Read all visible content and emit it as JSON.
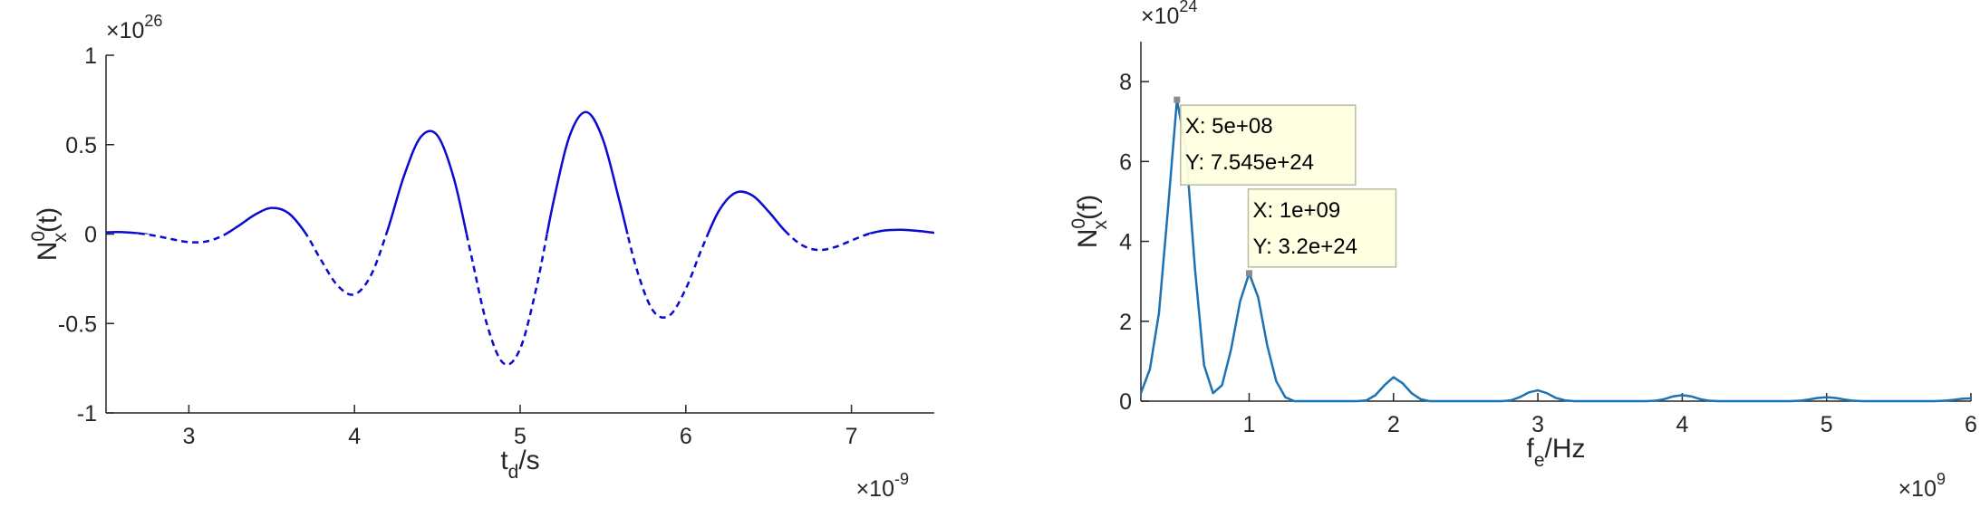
{
  "chart_data": [
    {
      "type": "line",
      "xlabel": {
        "base": "t",
        "sub": "d",
        "rest": "/s"
      },
      "ylabel": {
        "base": "N",
        "sub": "x",
        "sup": "0",
        "rest": "(t)"
      },
      "x_exponent": {
        "base": "×10",
        "sup": "-9"
      },
      "y_exponent": {
        "base": "×10",
        "sup": "26"
      },
      "x": [
        2.5,
        2.6,
        2.7,
        2.8,
        2.9,
        3.0,
        3.1,
        3.2,
        3.3,
        3.4,
        3.5,
        3.6,
        3.7,
        3.8,
        3.9,
        4.0,
        4.1,
        4.2,
        4.3,
        4.4,
        4.5,
        4.6,
        4.7,
        4.8,
        4.9,
        5.0,
        5.1,
        5.2,
        5.3,
        5.4,
        5.5,
        5.6,
        5.7,
        5.8,
        5.9,
        6.0,
        6.1,
        6.2,
        6.3,
        6.4,
        6.5,
        6.6,
        6.7,
        6.8,
        6.9,
        7.0,
        7.1,
        7.2,
        7.3,
        7.4,
        7.5
      ],
      "values": [
        0.01,
        0.011,
        0.004,
        -0.01,
        -0.029,
        -0.045,
        -0.042,
        -0.011,
        0.046,
        0.109,
        0.146,
        0.118,
        0.011,
        -0.148,
        -0.29,
        -0.337,
        -0.229,
        0.023,
        0.328,
        0.543,
        0.552,
        0.311,
        -0.099,
        -0.506,
        -0.723,
        -0.641,
        -0.291,
        0.176,
        0.552,
        0.682,
        0.529,
        0.183,
        -0.185,
        -0.425,
        -0.456,
        -0.306,
        -0.074,
        0.13,
        0.231,
        0.217,
        0.126,
        0.017,
        -0.061,
        -0.089,
        -0.073,
        -0.036,
        0,
        0.02,
        0.024,
        0.018,
        0.007
      ],
      "color": "#0a0ad2",
      "dash_below_zero": true,
      "xlim": [
        2.5,
        7.5
      ],
      "ylim": [
        -1,
        1
      ],
      "xticks": [
        3,
        4,
        5,
        6,
        7
      ],
      "yticks": [
        -1,
        -0.5,
        0,
        0.5,
        1
      ]
    },
    {
      "type": "line",
      "xlabel": {
        "base": "f",
        "sub": "e",
        "rest": "/Hz"
      },
      "ylabel": {
        "base": "N",
        "sub": "x",
        "sup": "0",
        "rest": "(f)"
      },
      "x_exponent": {
        "base": "×10",
        "sup": "9"
      },
      "y_exponent": {
        "base": "×10",
        "sup": "24"
      },
      "x": [
        0.25,
        0.3125,
        0.375,
        0.4375,
        0.5,
        0.5625,
        0.625,
        0.6875,
        0.75,
        0.8125,
        0.875,
        0.9375,
        1,
        1.0625,
        1.125,
        1.1875,
        1.25,
        1.3125,
        1.5,
        1.75,
        1.8125,
        1.875,
        1.9375,
        2,
        2.0625,
        2.125,
        2.1875,
        2.25,
        2.5,
        2.75,
        2.8125,
        2.875,
        2.9375,
        3,
        3.0625,
        3.125,
        3.1875,
        3.25,
        3.5,
        3.75,
        3.8125,
        3.875,
        3.9375,
        4,
        4.0625,
        4.125,
        4.1875,
        4.25,
        4.5,
        4.75,
        4.8125,
        4.875,
        4.9375,
        5,
        5.0625,
        5.125,
        5.1875,
        5.25,
        5.5,
        5.75,
        5.8125,
        5.875,
        5.9375,
        6
      ],
      "values": [
        0.2,
        0.8,
        2.2,
        4.8,
        7.545,
        6.3,
        3.3,
        0.9,
        0.2,
        0.4,
        1.3,
        2.5,
        3.2,
        2.6,
        1.4,
        0.5,
        0.1,
        0,
        0,
        0,
        0.02,
        0.15,
        0.4,
        0.6,
        0.45,
        0.2,
        0.05,
        0,
        0,
        0,
        0.02,
        0.1,
        0.22,
        0.27,
        0.2,
        0.08,
        0.02,
        0,
        0,
        0,
        0.01,
        0.05,
        0.12,
        0.15,
        0.12,
        0.05,
        0.01,
        0,
        0,
        0,
        0.01,
        0.04,
        0.08,
        0.1,
        0.08,
        0.04,
        0.01,
        0,
        0,
        0,
        0.01,
        0.03,
        0.06,
        0.07
      ],
      "color": "#1f72b2",
      "xlim": [
        0.25,
        6
      ],
      "ylim": [
        0,
        9
      ],
      "xticks": [
        1,
        2,
        3,
        4,
        5,
        6
      ],
      "yticks": [
        0,
        2,
        4,
        6,
        8
      ],
      "annotations": [
        {
          "x": 0.5,
          "y": 7.545,
          "labels": [
            "X: 5e+08",
            "Y: 7.545e+24"
          ]
        },
        {
          "x": 1,
          "y": 3.2,
          "labels": [
            "X: 1e+09",
            "Y: 3.2e+24"
          ]
        }
      ]
    }
  ]
}
